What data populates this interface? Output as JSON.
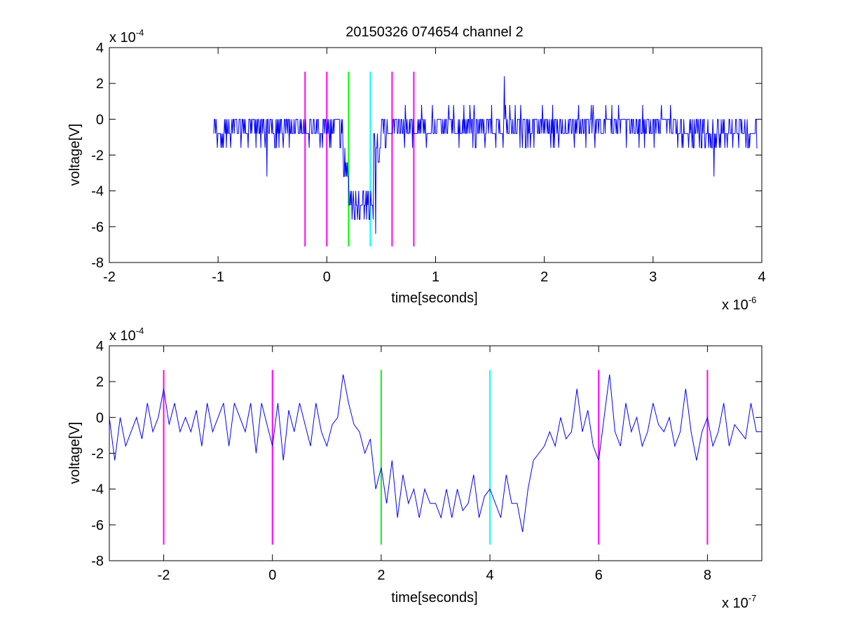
{
  "title": "20150326 074654 channel 2",
  "chart_data": [
    {
      "type": "line",
      "ylabel": "voltage[V]",
      "xlabel": "time[seconds]",
      "x_exponent_base": "x 10",
      "x_exponent": "-6",
      "y_exponent_base": "x 10",
      "y_exponent": "-4",
      "xlim": [
        -2,
        4
      ],
      "ylim": [
        -8,
        4
      ],
      "x_ticks": [
        -2,
        -1,
        0,
        1,
        2,
        3,
        4
      ],
      "x_tick_labels": [
        "-2",
        "-1",
        "0",
        "1",
        "2",
        "3",
        "4"
      ],
      "y_ticks": [
        -8,
        -6,
        -4,
        -2,
        0,
        2,
        4
      ],
      "y_tick_labels": [
        "-8",
        "-6",
        "-4",
        "-2",
        "0",
        "2",
        "4"
      ],
      "grid": false,
      "marker_lines": [
        {
          "x": -0.2,
          "color": "#ff00ff",
          "y_from": -7.1,
          "y_to": 2.65
        },
        {
          "x": 0.0,
          "color": "#ff00ff",
          "y_from": -7.1,
          "y_to": 2.65
        },
        {
          "x": 0.2,
          "color": "#00ff00",
          "y_from": -7.1,
          "y_to": 2.65
        },
        {
          "x": 0.4,
          "color": "#00ffff",
          "y_from": -7.1,
          "y_to": 2.65
        },
        {
          "x": 0.6,
          "color": "#ff00ff",
          "y_from": -7.1,
          "y_to": 2.65
        },
        {
          "x": 0.8,
          "color": "#ff00ff",
          "y_from": -7.1,
          "y_to": 2.65
        }
      ],
      "series": [
        {
          "color": "#0000ff",
          "x_start": -1.04,
          "x_end": 3.96,
          "levels": [
            -2.4,
            -1.6,
            -0.8,
            0,
            0.8,
            1.6,
            2.4
          ],
          "baseline_segments": [
            {
              "from": -1.04,
              "to": 0.15,
              "mean": -0.5
            },
            {
              "from": 0.15,
              "to": 0.2,
              "mean": -2.8
            },
            {
              "from": 0.2,
              "to": 0.43,
              "mean": -4.9
            },
            {
              "from": 0.43,
              "to": 0.5,
              "mean": -1.5
            },
            {
              "from": 0.5,
              "to": 3.2,
              "mean": -0.4
            },
            {
              "from": 3.2,
              "to": 3.96,
              "mean": -0.9
            }
          ],
          "noise_amplitude": 0.9,
          "extremes": [
            {
              "x": -0.55,
              "y": -3.2
            },
            {
              "x": 0.45,
              "y": -6.4
            },
            {
              "x": 1.63,
              "y": 2.4
            },
            {
              "x": 3.56,
              "y": -3.2
            }
          ]
        }
      ]
    },
    {
      "type": "line",
      "ylabel": "voltage[V]",
      "xlabel": "time[seconds]",
      "x_exponent_base": "x 10",
      "x_exponent": "-7",
      "y_exponent_base": "x 10",
      "y_exponent": "-4",
      "xlim": [
        -3,
        9
      ],
      "ylim": [
        -8,
        4
      ],
      "x_ticks": [
        -2,
        0,
        2,
        4,
        6,
        8
      ],
      "x_tick_labels": [
        "-2",
        "0",
        "2",
        "4",
        "6",
        "8"
      ],
      "y_ticks": [
        -8,
        -6,
        -4,
        -2,
        0,
        2,
        4
      ],
      "y_tick_labels": [
        "-8",
        "-6",
        "-4",
        "-2",
        "0",
        "2",
        "4"
      ],
      "grid": false,
      "marker_lines": [
        {
          "x": -2,
          "color": "#ff00ff",
          "y_from": -7.1,
          "y_to": 2.65
        },
        {
          "x": 0,
          "color": "#ff00ff",
          "y_from": -7.1,
          "y_to": 2.65
        },
        {
          "x": 2,
          "color": "#00ff00",
          "y_from": -7.1,
          "y_to": 2.65
        },
        {
          "x": 4,
          "color": "#00ffff",
          "y_from": -7.1,
          "y_to": 2.65
        },
        {
          "x": 6,
          "color": "#ff00ff",
          "y_from": -7.1,
          "y_to": 2.65
        },
        {
          "x": 8,
          "color": "#ff00ff",
          "y_from": -7.1,
          "y_to": 2.65
        }
      ],
      "series": [
        {
          "color": "#0000ff",
          "x": [
            -3.0,
            -2.9,
            -2.8,
            -2.7,
            -2.6,
            -2.5,
            -2.4,
            -2.3,
            -2.2,
            -2.1,
            -2.0,
            -1.9,
            -1.8,
            -1.7,
            -1.6,
            -1.5,
            -1.4,
            -1.3,
            -1.2,
            -1.1,
            -1.0,
            -0.9,
            -0.8,
            -0.7,
            -0.6,
            -0.5,
            -0.4,
            -0.3,
            -0.2,
            -0.1,
            0.0,
            0.1,
            0.2,
            0.3,
            0.4,
            0.5,
            0.6,
            0.7,
            0.8,
            0.9,
            1.0,
            1.1,
            1.2,
            1.3,
            1.4,
            1.5,
            1.6,
            1.7,
            1.8,
            1.9,
            2.0,
            2.1,
            2.2,
            2.3,
            2.4,
            2.5,
            2.6,
            2.7,
            2.8,
            2.9,
            3.0,
            3.1,
            3.2,
            3.3,
            3.4,
            3.5,
            3.6,
            3.7,
            3.8,
            3.9,
            4.0,
            4.1,
            4.2,
            4.3,
            4.4,
            4.5,
            4.6,
            4.7,
            4.8,
            4.9,
            5.0,
            5.1,
            5.2,
            5.3,
            5.4,
            5.5,
            5.6,
            5.7,
            5.8,
            5.9,
            6.0,
            6.1,
            6.2,
            6.3,
            6.4,
            6.5,
            6.6,
            6.7,
            6.8,
            6.9,
            7.0,
            7.1,
            7.2,
            7.3,
            7.4,
            7.5,
            7.6,
            7.7,
            7.8,
            7.9,
            8.0,
            8.1,
            8.2,
            8.3,
            8.4,
            8.5,
            8.6,
            8.7,
            8.8,
            8.9,
            9.0
          ],
          "y": [
            0.0,
            -2.4,
            0.0,
            -1.6,
            -0.8,
            0.0,
            -1.2,
            0.8,
            -0.8,
            0.0,
            1.6,
            -0.4,
            0.8,
            -0.8,
            0.0,
            -0.8,
            0.4,
            -1.6,
            0.8,
            -0.8,
            0.0,
            0.8,
            -1.6,
            0.8,
            0.0,
            -0.8,
            0.8,
            -2.0,
            0.8,
            -0.4,
            -1.6,
            0.8,
            -2.4,
            0.4,
            -0.8,
            0.8,
            -0.4,
            -1.6,
            0.8,
            -0.8,
            -1.6,
            -0.4,
            0.0,
            2.4,
            0.8,
            -0.4,
            -0.8,
            -2.0,
            -1.2,
            -4.0,
            -2.8,
            -4.8,
            -2.4,
            -5.6,
            -3.2,
            -4.8,
            -4.0,
            -5.6,
            -4.0,
            -4.8,
            -4.8,
            -5.6,
            -4.0,
            -5.6,
            -4.0,
            -5.2,
            -4.8,
            -3.2,
            -5.6,
            -4.4,
            -4.0,
            -4.8,
            -5.6,
            -3.2,
            -4.8,
            -4.8,
            -6.4,
            -4.0,
            -2.4,
            -2.0,
            -1.6,
            -0.8,
            -1.6,
            0.0,
            -1.2,
            -0.8,
            1.6,
            -0.8,
            0.4,
            -1.6,
            -2.4,
            0.0,
            2.4,
            -0.8,
            -1.6,
            0.8,
            -0.8,
            0.0,
            -1.6,
            -0.8,
            0.8,
            -0.4,
            -0.8,
            0.0,
            -1.6,
            -0.8,
            1.6,
            -0.8,
            -2.4,
            -0.8,
            0.0,
            -1.6,
            -0.8,
            0.8,
            -1.6,
            -0.4,
            -0.8,
            -1.2,
            0.8,
            -0.8,
            -0.8
          ]
        }
      ]
    }
  ]
}
